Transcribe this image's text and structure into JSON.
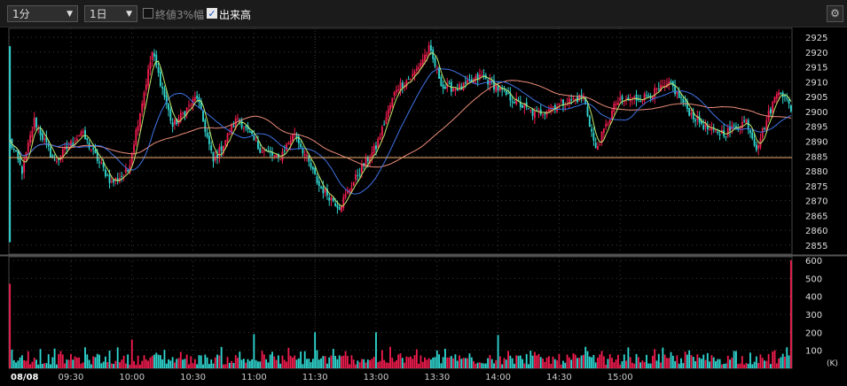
{
  "toolbar": {
    "interval": "1分",
    "period": "1日",
    "close3pct_label": "終値3%幅",
    "close3pct_checked": false,
    "volume_label": "出来高",
    "volume_checked": true,
    "settings_icon": "gear-icon"
  },
  "colors": {
    "up": "#f01c4e",
    "down": "#2fd6d0",
    "ma_short": "#bfe86b",
    "ma_mid": "#3f73e6",
    "ma_long": "#ee8c7a",
    "ref_line": "#f0b070",
    "grid": "#3a3a3a",
    "background": "#000000"
  },
  "chart_data": [
    {
      "type": "candlestick",
      "date_label": "08/08",
      "x_ticks": [
        "09:30",
        "10:00",
        "10:30",
        "11:00",
        "11:30",
        "13:00",
        "13:30",
        "14:00",
        "14:30",
        "15:00"
      ],
      "y_ticks": [
        2855,
        2860,
        2865,
        2870,
        2875,
        2880,
        2885,
        2890,
        2895,
        2900,
        2905,
        2910,
        2915,
        2920,
        2925
      ],
      "ylim": [
        2852,
        2928
      ],
      "reference_level": 2884.5,
      "series_keypoints": [
        [
          0,
          2890
        ],
        [
          6,
          2880
        ],
        [
          12,
          2897
        ],
        [
          22,
          2883
        ],
        [
          35,
          2893
        ],
        [
          50,
          2876
        ],
        [
          58,
          2880
        ],
        [
          70,
          2920
        ],
        [
          80,
          2895
        ],
        [
          92,
          2905
        ],
        [
          100,
          2883
        ],
        [
          112,
          2898
        ],
        [
          122,
          2888
        ],
        [
          132,
          2884
        ],
        [
          140,
          2893
        ],
        [
          152,
          2875
        ],
        [
          162,
          2868
        ],
        [
          172,
          2880
        ],
        [
          180,
          2888
        ],
        [
          190,
          2908
        ],
        [
          198,
          2912
        ],
        [
          206,
          2921
        ],
        [
          213,
          2908
        ],
        [
          222,
          2908
        ],
        [
          232,
          2912
        ],
        [
          245,
          2905
        ],
        [
          258,
          2899
        ],
        [
          268,
          2902
        ],
        [
          282,
          2905
        ],
        [
          288,
          2887
        ],
        [
          298,
          2903
        ],
        [
          312,
          2905
        ],
        [
          325,
          2909
        ],
        [
          335,
          2899
        ],
        [
          345,
          2893
        ],
        [
          352,
          2893
        ],
        [
          362,
          2897
        ],
        [
          367,
          2888
        ],
        [
          378,
          2908
        ],
        [
          384,
          2901
        ]
      ],
      "grid": true,
      "legend": "none"
    },
    {
      "type": "bar",
      "title": "volume",
      "unit_label": "(K)",
      "y_ticks": [
        100,
        200,
        300,
        400,
        500,
        600
      ],
      "ylim": [
        0,
        620
      ],
      "first_bar_value": 470,
      "last_bar_value": 600,
      "typical_range": [
        20,
        120
      ],
      "spikes": [
        {
          "time": "10:00",
          "value": 160
        },
        {
          "time": "11:00",
          "value": 190
        },
        {
          "time": "11:30",
          "value": 200
        },
        {
          "time": "13:00",
          "value": 200
        },
        {
          "time": "14:00",
          "value": 185
        }
      ]
    }
  ]
}
